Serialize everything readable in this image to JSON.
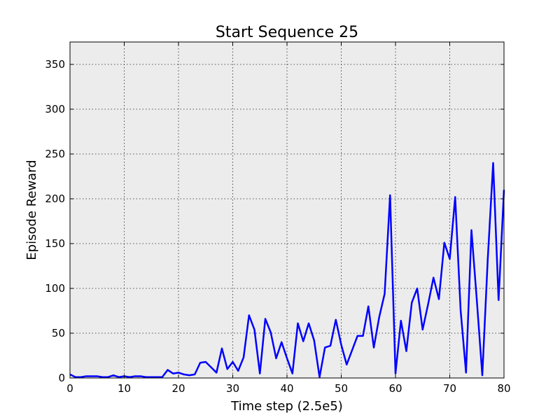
{
  "chart_data": {
    "type": "line",
    "title": "Start Sequence 25",
    "xlabel": "Time step (2.5e5)",
    "ylabel": "Episode Reward",
    "xlim": [
      0,
      80
    ],
    "ylim": [
      0,
      375
    ],
    "xticks": [
      0,
      10,
      20,
      30,
      40,
      50,
      60,
      70,
      80
    ],
    "yticks": [
      0,
      50,
      100,
      150,
      200,
      250,
      300,
      350
    ],
    "grid": true,
    "background_color": "#ececec",
    "series": [
      {
        "color": "#0000ff",
        "x": [
          0,
          1,
          2,
          3,
          4,
          5,
          6,
          7,
          8,
          9,
          10,
          11,
          12,
          13,
          14,
          15,
          16,
          17,
          18,
          19,
          20,
          21,
          22,
          23,
          24,
          25,
          26,
          27,
          28,
          29,
          30,
          31,
          32,
          33,
          34,
          35,
          36,
          37,
          38,
          39,
          40,
          41,
          42,
          43,
          44,
          45,
          46,
          47,
          48,
          49,
          50,
          51,
          52,
          53,
          54,
          55,
          56,
          57,
          58,
          59,
          60,
          61,
          62,
          63,
          64,
          65,
          66,
          67,
          68,
          69,
          70,
          71,
          72,
          73,
          74,
          75,
          76,
          77,
          78,
          79,
          80
        ],
        "y": [
          4,
          1,
          1,
          2,
          2,
          2,
          1,
          1,
          3,
          1,
          2,
          1,
          2,
          2,
          1,
          1,
          1,
          1,
          9,
          5,
          6,
          4,
          3,
          4,
          17,
          18,
          12,
          6,
          33,
          10,
          18,
          8,
          23,
          70,
          54,
          5,
          66,
          51,
          22,
          40,
          22,
          5,
          61,
          41,
          61,
          42,
          1,
          34,
          36,
          65,
          37,
          15,
          31,
          47,
          47,
          80,
          34,
          68,
          94,
          204,
          5,
          64,
          30,
          84,
          100,
          54,
          82,
          112,
          88,
          151,
          133,
          202,
          76,
          6,
          165,
          86,
          3,
          132,
          240,
          87,
          210
        ]
      }
    ]
  }
}
